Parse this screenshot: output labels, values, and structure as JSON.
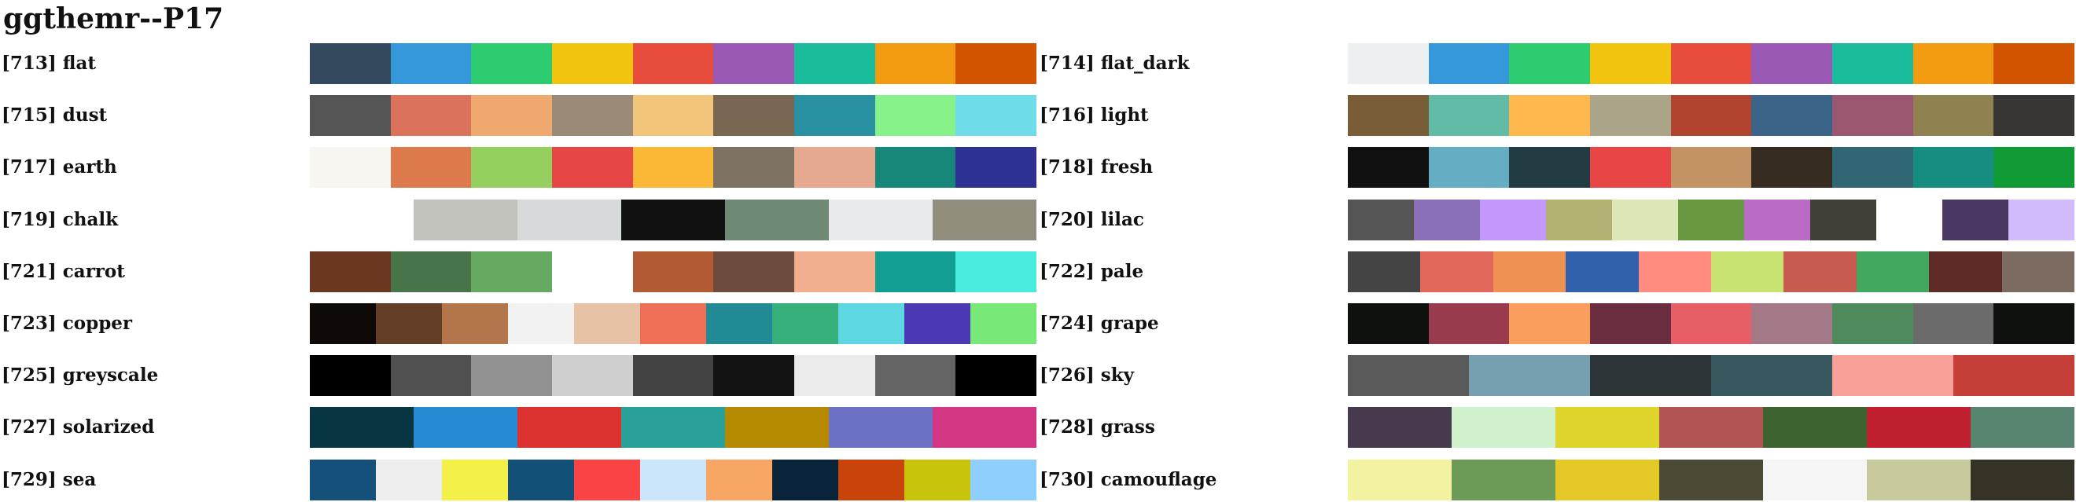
{
  "title": "ggthemr--P17",
  "palettes": [
    {
      "label": "[713] flat",
      "colors": [
        "#34495e",
        "#3498db",
        "#2ecc71",
        "#f1c40f",
        "#e74c3c",
        "#9b59b6",
        "#1abc9c",
        "#f39c12",
        "#d35400"
      ]
    },
    {
      "label": "[714] flat_dark",
      "colors": [
        "#ecf0f1",
        "#3498db",
        "#2ecc71",
        "#f1c40f",
        "#e74c3c",
        "#9b59b6",
        "#1abc9c",
        "#f39c12",
        "#d35400"
      ]
    },
    {
      "label": "[715] dust",
      "colors": [
        "#555555",
        "#db735c",
        "#efa86e",
        "#9a8a76",
        "#f3c57b",
        "#7a6752",
        "#2a91a2",
        "#87f28a",
        "#6edce9"
      ]
    },
    {
      "label": "[716] light",
      "colors": [
        "#785d37",
        "#62bba5",
        "#ffb84d",
        "#aaa488",
        "#b2432f",
        "#3a6589",
        "#9b5672",
        "#908150",
        "#373634"
      ]
    },
    {
      "label": "[717] earth",
      "colors": [
        "#f8f6f1",
        "#dd7a4c",
        "#95cf5e",
        "#e74646",
        "#fbb836",
        "#7d7164",
        "#e5a98f",
        "#168778",
        "#2e3192"
      ]
    },
    {
      "label": "[718] fresh",
      "colors": [
        "#111111",
        "#65adc2",
        "#233b43",
        "#e84646",
        "#c29365",
        "#362c21",
        "#316675",
        "#168e7f",
        "#109b37"
      ]
    },
    {
      "label": "[719] chalk",
      "colors": [
        "#ffffff",
        "#c1c3bc",
        "#d6dadb",
        "#111111",
        "#6e8a75",
        "#e9eaeb",
        "#928e7d"
      ]
    },
    {
      "label": "[720] lilac",
      "colors": [
        "#555555",
        "#8a70b6",
        "#c299fa",
        "#b1b172",
        "#dde6b6",
        "#68983f",
        "#b96bc6",
        "#404036",
        "#ffffff",
        "#483663",
        "#d2bbfd"
      ]
    },
    {
      "label": "[721] carrot",
      "colors": [
        "#6b3721",
        "#48744a",
        "#65aa60",
        "#ffffff",
        "#b25a32",
        "#6d4c3d",
        "#f0ae8f",
        "#139e93",
        "#48ebdd"
      ]
    },
    {
      "label": "[722] pale",
      "colors": [
        "#444444",
        "#e3685c",
        "#ef9153",
        "#3161ad",
        "#ff8c7e",
        "#c9e372",
        "#c75b50",
        "#41a85f",
        "#5e2b26",
        "#7b6b60"
      ]
    },
    {
      "label": "[723] copper",
      "colors": [
        "#0f0a08",
        "#643f27",
        "#b2764a",
        "#f2f2f2",
        "#e6c3a7",
        "#f07057",
        "#218a95",
        "#38b07c",
        "#5dd8e3",
        "#4a39b3",
        "#78e878"
      ]
    },
    {
      "label": "[724] grape",
      "colors": [
        "#0f110f",
        "#9a3a4d",
        "#f99e5c",
        "#6b2e40",
        "#e85e66",
        "#a37887",
        "#4f8a5c",
        "#6b6b6b",
        "#0f110f"
      ]
    },
    {
      "label": "[725] greyscale",
      "colors": [
        "#000000",
        "#505050",
        "#919191",
        "#cfcfcf",
        "#434343",
        "#131313",
        "#ebebeb",
        "#646464",
        "#000000"
      ]
    },
    {
      "label": "[726] sky",
      "colors": [
        "#5a5a5a",
        "#769faf",
        "#2d3438",
        "#385860",
        "#f89f97",
        "#c63e38"
      ]
    },
    {
      "label": "[727] solarized",
      "colors": [
        "#073642",
        "#268bd2",
        "#dc322f",
        "#2aa198",
        "#b58900",
        "#6c71c4",
        "#d33682"
      ]
    },
    {
      "label": "[728] grass",
      "colors": [
        "#473a4f",
        "#cff2cc",
        "#ded42b",
        "#b35454",
        "#3d6330",
        "#c01f30",
        "#578570"
      ]
    },
    {
      "label": "[729] sea",
      "colors": [
        "#14507a",
        "#eeeeee",
        "#f3f04a",
        "#135078",
        "#f94344",
        "#cbe6fb",
        "#f7a663",
        "#09233a",
        "#c9440b",
        "#c8c30b",
        "#8fcffd"
      ]
    },
    {
      "label": "[730] camouflage",
      "colors": [
        "#f2f2a1",
        "#6b9b56",
        "#e3c828",
        "#4c4a35",
        "#f5f5f5",
        "#c7c89c",
        "#363326"
      ]
    }
  ]
}
